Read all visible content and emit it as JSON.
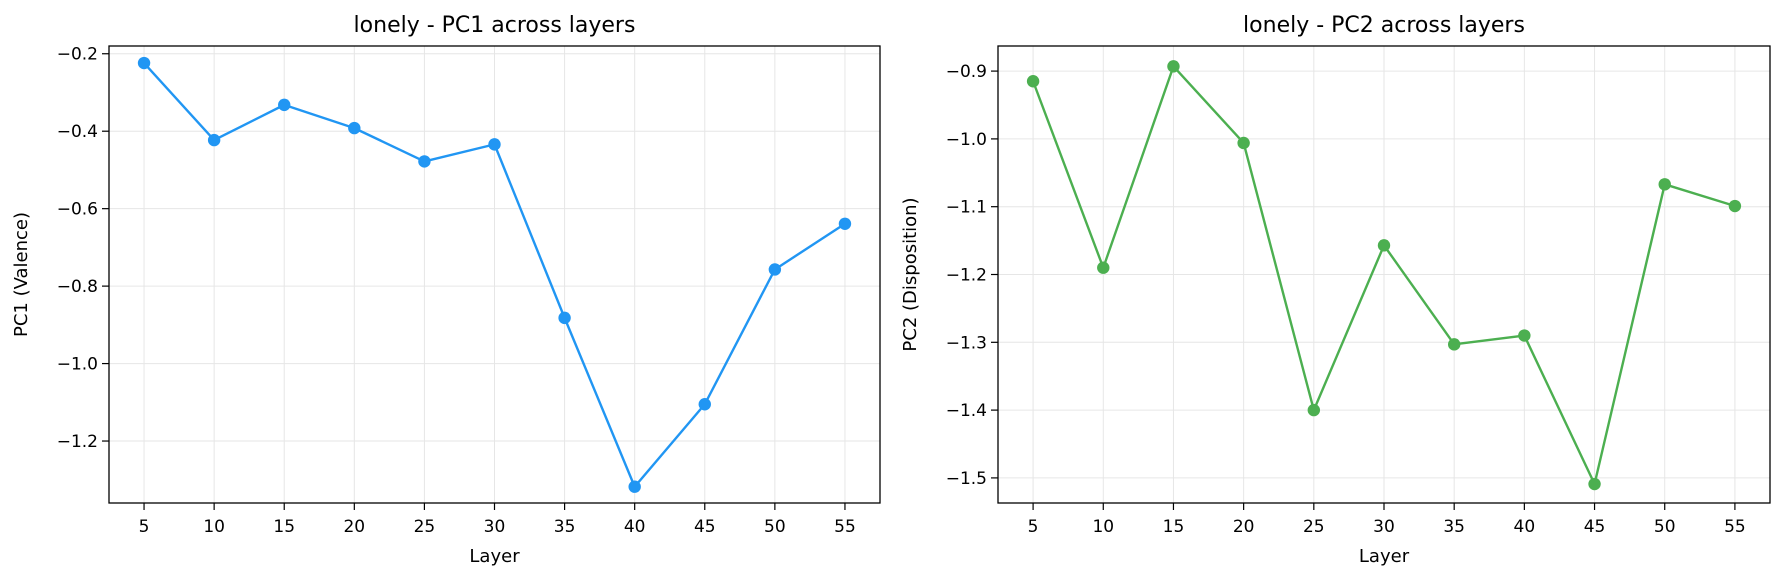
{
  "chart_data": [
    {
      "type": "line",
      "title": "lonely - PC1 across layers",
      "xlabel": "Layer",
      "ylabel": "PC1 (Valence)",
      "x": [
        5,
        10,
        15,
        20,
        25,
        30,
        35,
        40,
        45,
        50,
        55
      ],
      "series": [
        {
          "values": [
            -0.224,
            -0.423,
            -0.332,
            -0.392,
            -0.478,
            -0.434,
            -0.882,
            -1.318,
            -1.105,
            -0.757,
            -0.639
          ]
        }
      ],
      "xticks": [
        5,
        10,
        15,
        20,
        25,
        30,
        35,
        40,
        45,
        50,
        55
      ],
      "xtick_labels": [
        "5",
        "10",
        "15",
        "20",
        "25",
        "30",
        "35",
        "40",
        "45",
        "50",
        "55"
      ],
      "yticks": [
        -0.2,
        -0.4,
        -0.6,
        -0.8,
        -1.0,
        -1.2
      ],
      "ytick_labels": [
        "−0.2",
        "−0.4",
        "−0.6",
        "−0.8",
        "−1.0",
        "−1.2"
      ],
      "xlim": [
        2.5,
        57.5
      ],
      "ylim": [
        -1.36,
        -0.18
      ],
      "grid": true,
      "color": "#2196F3"
    },
    {
      "type": "line",
      "title": "lonely - PC2 across layers",
      "xlabel": "Layer",
      "ylabel": "PC2 (Disposition)",
      "x": [
        5,
        10,
        15,
        20,
        25,
        30,
        35,
        40,
        45,
        50,
        55
      ],
      "series": [
        {
          "values": [
            -0.915,
            -1.19,
            -0.893,
            -1.006,
            -1.4,
            -1.157,
            -1.303,
            -1.29,
            -1.509,
            -1.067,
            -1.099
          ]
        }
      ],
      "xticks": [
        5,
        10,
        15,
        20,
        25,
        30,
        35,
        40,
        45,
        50,
        55
      ],
      "xtick_labels": [
        "5",
        "10",
        "15",
        "20",
        "25",
        "30",
        "35",
        "40",
        "45",
        "50",
        "55"
      ],
      "yticks": [
        -0.9,
        -1.0,
        -1.1,
        -1.2,
        -1.3,
        -1.4,
        -1.5
      ],
      "ytick_labels": [
        "−0.9",
        "−1.0",
        "−1.1",
        "−1.2",
        "−1.3",
        "−1.4",
        "−1.5"
      ],
      "xlim": [
        2.5,
        57.5
      ],
      "ylim": [
        -1.537,
        -0.863
      ],
      "grid": true,
      "color": "#4CAF50"
    }
  ]
}
